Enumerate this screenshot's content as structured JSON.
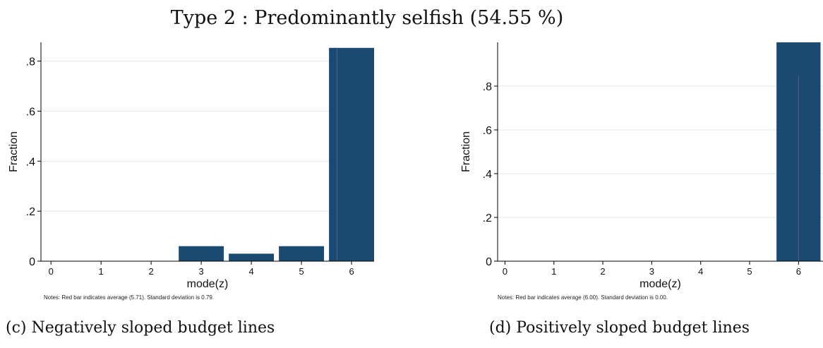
{
  "title": "Type 2 : Predominantly selfish (54.55 %)",
  "chart_data": [
    {
      "type": "bar",
      "caption": "(c) Negatively sloped budget lines",
      "xlabel": "mode(z)",
      "ylabel": "Fraction",
      "categories": [
        0,
        1,
        2,
        3,
        4,
        5,
        6
      ],
      "values": [
        0,
        0,
        0,
        0.06,
        0.03,
        0.06,
        0.853
      ],
      "x_ticks": [
        "0",
        "1",
        "2",
        "3",
        "4",
        "5",
        "6"
      ],
      "y_ticks": [
        0,
        0.2,
        0.4,
        0.6,
        0.8
      ],
      "y_tick_labels": [
        "0",
        ".2",
        ".4",
        ".6",
        ".8"
      ],
      "ylim": [
        0,
        0.875
      ],
      "xlim": [
        -0.2,
        6.45
      ],
      "average": 5.71,
      "note": "Notes: Red bar indicates average (5.71). Standard deviation is 0.79.",
      "bar_color": "#1a4a72",
      "average_line_color": "#c0392b",
      "grid": true
    },
    {
      "type": "bar",
      "caption": "(d) Positively sloped budget lines",
      "xlabel": "mode(z)",
      "ylabel": "Fraction",
      "categories": [
        0,
        1,
        2,
        3,
        4,
        5,
        6
      ],
      "values": [
        0,
        0,
        0,
        0,
        0,
        0,
        1.0
      ],
      "x_ticks": [
        "0",
        "1",
        "2",
        "3",
        "4",
        "5",
        "6"
      ],
      "y_ticks": [
        0,
        0.2,
        0.4,
        0.6,
        0.8
      ],
      "y_tick_labels": [
        "0",
        ".2",
        ".4",
        ".6",
        ".8"
      ],
      "ylim": [
        0,
        1.0
      ],
      "xlim": [
        -0.15,
        6.5
      ],
      "average": 6.0,
      "average_line_top": 0.85,
      "note": "Notes: Red bar indicates average (6.00). Standard deviation is 0.00.",
      "bar_color": "#1a4a72",
      "average_line_color": "#c0392b",
      "grid": true
    }
  ]
}
